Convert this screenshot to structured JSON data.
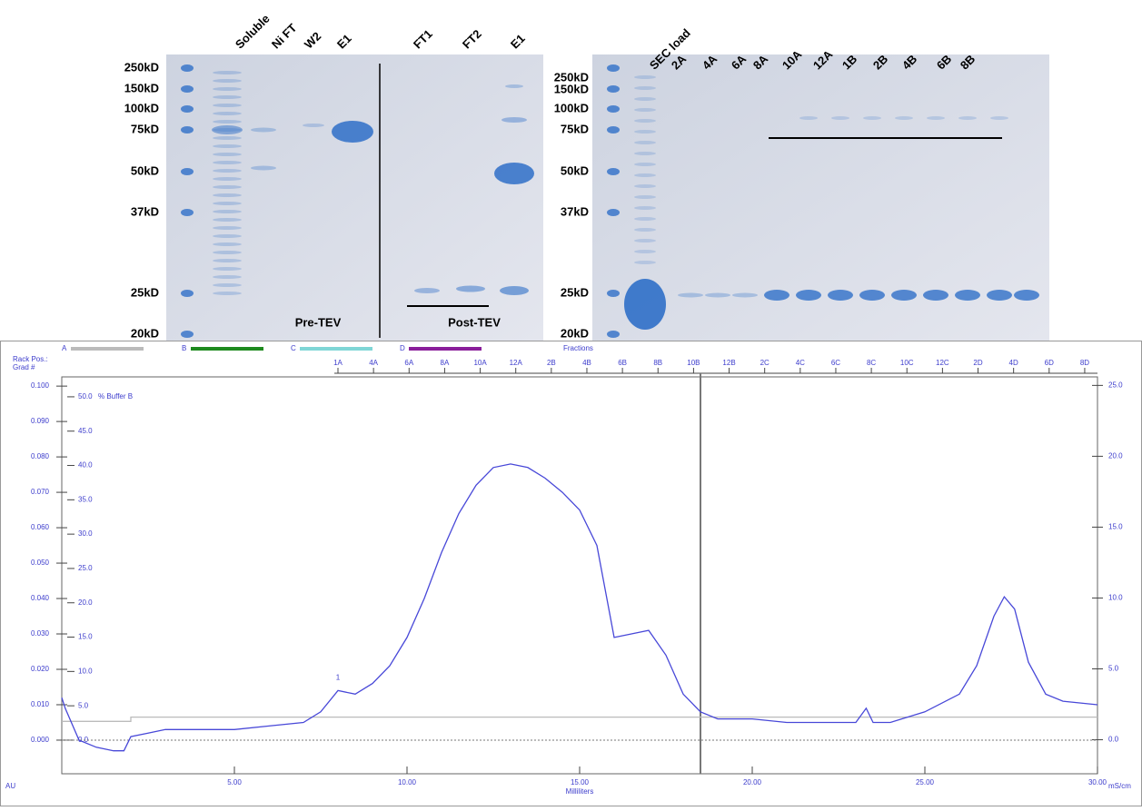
{
  "gels": [
    {
      "mw_labels": [
        "250kD",
        "150kD",
        "100kD",
        "75kD",
        "50kD",
        "37kD",
        "25kD",
        "20kD"
      ],
      "lane_labels": [
        "Soluble",
        "Ni FT",
        "W2",
        "E1",
        "FT1",
        "FT2",
        "E1"
      ],
      "annotations": [
        "Pre-TEV",
        "Post-TEV"
      ]
    },
    {
      "mw_labels": [
        "250kD",
        "150kD",
        "100kD",
        "75kD",
        "50kD",
        "37kD",
        "25kD",
        "20kD"
      ],
      "lane_labels": [
        "SEC load",
        "2A",
        "4A",
        "6A",
        "8A",
        "10A",
        "12A",
        "1B",
        "2B",
        "4B",
        "6B",
        "8B"
      ]
    }
  ],
  "chart_data": {
    "type": "line",
    "legend": [
      "A",
      "B",
      "C",
      "D"
    ],
    "legend_colors": [
      "#bbbbbb",
      "#1e8a1e",
      "#7fd6d6",
      "#8a1e9a"
    ],
    "header_labels": [
      "Rack Pos.:",
      "Grad #",
      "Fractions"
    ],
    "x_label": "Milliliters",
    "y_label": "AU",
    "y2_label": "mS/cm",
    "y3_label": "% Buffer B",
    "peak_label": "1",
    "xlim": [
      0,
      30
    ],
    "xticks": [
      {
        "value": 5,
        "label": "5.00"
      },
      {
        "value": 10,
        "label": "10.00"
      },
      {
        "value": 15,
        "label": "15.00"
      },
      {
        "value": 20,
        "label": "20.00"
      },
      {
        "value": 25,
        "label": "25.00"
      },
      {
        "value": 30,
        "label": "30.00"
      }
    ],
    "ylim": [
      -0.0095,
      0.1026
    ],
    "yticks": [
      {
        "value": 0,
        "label": "0.000"
      },
      {
        "value": 0.01,
        "label": "0.010"
      },
      {
        "value": 0.02,
        "label": "0.020"
      },
      {
        "value": 0.03,
        "label": "0.030"
      },
      {
        "value": 0.04,
        "label": "0.040"
      },
      {
        "value": 0.05,
        "label": "0.050"
      },
      {
        "value": 0.06,
        "label": "0.060"
      },
      {
        "value": 0.07,
        "label": "0.070"
      },
      {
        "value": 0.08,
        "label": "0.080"
      },
      {
        "value": 0.09,
        "label": "0.090"
      },
      {
        "value": 0.1,
        "label": "0.100"
      }
    ],
    "y2lim": [
      -2.4,
      25.6
    ],
    "y2ticks": [
      {
        "value": 0,
        "label": "0.0"
      },
      {
        "value": 5,
        "label": "5.0"
      },
      {
        "value": 10,
        "label": "10.0"
      },
      {
        "value": 15,
        "label": "15.0"
      },
      {
        "value": 20,
        "label": "20.0"
      },
      {
        "value": 25,
        "label": "25.0"
      }
    ],
    "y3lim": [
      -4.9,
      52.9
    ],
    "y3ticks": [
      {
        "value": 0,
        "label": "0.0"
      },
      {
        "value": 5,
        "label": "5.0"
      },
      {
        "value": 10,
        "label": "10.0"
      },
      {
        "value": 15,
        "label": "15.0"
      },
      {
        "value": 20,
        "label": "20.0"
      },
      {
        "value": 25,
        "label": "25.0"
      },
      {
        "value": 30,
        "label": "30.0"
      },
      {
        "value": 35,
        "label": "35.0"
      },
      {
        "value": 40,
        "label": "40.0"
      },
      {
        "value": 45,
        "label": "45.0"
      },
      {
        "value": 50,
        "label": "50.0"
      }
    ],
    "fraction_labels": [
      "1A",
      "4A",
      "6A",
      "8A",
      "10A",
      "12A",
      "2B",
      "4B",
      "6B",
      "8B",
      "10B",
      "12B",
      "2C",
      "4C",
      "6C",
      "8C",
      "10C",
      "12C",
      "2D",
      "4D",
      "6D",
      "8D"
    ],
    "fraction_x": [
      8.0,
      9.03,
      10.06,
      11.09,
      12.12,
      13.15,
      14.18,
      15.21,
      16.24,
      17.27,
      18.3,
      19.33,
      20.36,
      21.39,
      22.42,
      23.45,
      24.48,
      25.51,
      26.54,
      27.57,
      28.6,
      29.63
    ],
    "series": [
      {
        "color": "#4848d8",
        "x": [
          0,
          0.1,
          0.5,
          1,
          1.5,
          1.8,
          2,
          2.5,
          3,
          4,
          5,
          6,
          7,
          7.5,
          8,
          8.5,
          9,
          9.5,
          10,
          10.5,
          11,
          11.5,
          12,
          12.5,
          13,
          13.5,
          14,
          14.5,
          15,
          15.5,
          16,
          16.5,
          17,
          17.5,
          18,
          18.5,
          19,
          20,
          21,
          22,
          23,
          23.3,
          23.5,
          24,
          25,
          26,
          26.5,
          27,
          27.3,
          27.6,
          28,
          28.5,
          29,
          30
        ],
        "values": [
          0.012,
          0.009,
          0.0,
          -0.002,
          -0.003,
          -0.003,
          0.001,
          0.002,
          0.003,
          0.003,
          0.003,
          0.004,
          0.005,
          0.008,
          0.014,
          0.013,
          0.016,
          0.021,
          0.029,
          0.04,
          0.053,
          0.064,
          0.072,
          0.077,
          0.078,
          0.077,
          0.074,
          0.07,
          0.065,
          0.055,
          0.029,
          0.03,
          0.031,
          0.024,
          0.013,
          0.008,
          0.006,
          0.006,
          0.005,
          0.005,
          0.005,
          0.009,
          0.005,
          0.005,
          0.008,
          0.013,
          0.021,
          0.035,
          0.0405,
          0.037,
          0.022,
          0.013,
          0.011,
          0.01
        ]
      },
      {
        "color": "#bbbbbb",
        "axis": "y2",
        "x": [
          0,
          2,
          2,
          30
        ],
        "values": [
          1.3,
          1.3,
          1.6,
          1.6
        ]
      }
    ],
    "marker_x": 18.5
  }
}
